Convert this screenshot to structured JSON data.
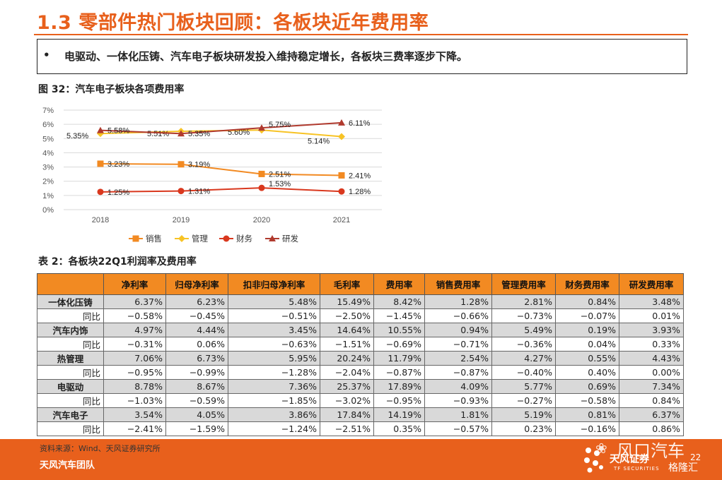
{
  "header": {
    "title": "1.3 零部件热门板块回顾：各板块近年费用率",
    "bullet_marker": "•",
    "bullet_text": "电驱动、一体化压铸、汽车电子板块研发投入维持稳定增长，各板块三费率逐步下降。"
  },
  "figure": {
    "caption": "图 32：汽车电子板块各项费用率"
  },
  "chart_data": {
    "type": "line",
    "title": "",
    "x": [
      "2018",
      "2019",
      "2020",
      "2021"
    ],
    "ylim": [
      0,
      7
    ],
    "y_ticks": [
      "0%",
      "1%",
      "2%",
      "3%",
      "4%",
      "5%",
      "6%",
      "7%"
    ],
    "grid": true,
    "legend_position": "bottom",
    "series": [
      {
        "name": "销售",
        "color": "#f28a22",
        "marker": "square",
        "values": [
          3.23,
          3.19,
          2.51,
          2.41
        ],
        "labels": [
          "3.23%",
          "3.19%",
          "2.51%",
          "2.41%"
        ]
      },
      {
        "name": "管理",
        "color": "#f7c325",
        "marker": "diamond",
        "values": [
          5.35,
          5.51,
          5.6,
          5.14
        ],
        "labels": [
          "5.35%",
          "5.51%",
          "5.60%",
          "5.14%"
        ]
      },
      {
        "name": "财务",
        "color": "#d9381e",
        "marker": "circle",
        "values": [
          1.25,
          1.31,
          1.53,
          1.28
        ],
        "labels": [
          "1.25%",
          "1.31%",
          "1.53%",
          "1.28%"
        ]
      },
      {
        "name": "研发",
        "color": "#b03a2e",
        "marker": "triangle",
        "values": [
          5.58,
          5.35,
          5.75,
          6.11
        ],
        "labels": [
          "5.58%",
          "5.35%",
          "5.75%",
          "6.11%"
        ]
      }
    ]
  },
  "table": {
    "caption": "表 2：各板块22Q1利润率及费用率",
    "columns": [
      "",
      "净利率",
      "归母净利率",
      "扣非归母净利率",
      "毛利率",
      "费用率",
      "销售费用率",
      "管理费用率",
      "财务费用率",
      "研发费用率"
    ],
    "rows": [
      {
        "kind": "main",
        "cells": [
          "一体化压铸",
          "6.37%",
          "6.23%",
          "5.48%",
          "15.49%",
          "8.42%",
          "1.28%",
          "2.81%",
          "0.84%",
          "3.48%"
        ]
      },
      {
        "kind": "yoy",
        "cells": [
          "同比",
          "−0.58%",
          "−0.45%",
          "−0.51%",
          "−2.50%",
          "−1.45%",
          "−0.66%",
          "−0.73%",
          "−0.07%",
          "0.01%"
        ]
      },
      {
        "kind": "main",
        "cells": [
          "汽车内饰",
          "4.97%",
          "4.44%",
          "3.45%",
          "14.64%",
          "10.55%",
          "0.94%",
          "5.49%",
          "0.19%",
          "3.93%"
        ]
      },
      {
        "kind": "yoy",
        "cells": [
          "同比",
          "−0.31%",
          "0.06%",
          "−0.63%",
          "−1.51%",
          "−0.69%",
          "−0.71%",
          "−0.36%",
          "0.04%",
          "0.33%"
        ]
      },
      {
        "kind": "main",
        "cells": [
          "热管理",
          "7.06%",
          "6.73%",
          "5.95%",
          "20.24%",
          "11.79%",
          "2.54%",
          "4.27%",
          "0.55%",
          "4.43%"
        ]
      },
      {
        "kind": "yoy",
        "cells": [
          "同比",
          "−0.95%",
          "−0.99%",
          "−1.28%",
          "−2.04%",
          "−0.87%",
          "−0.87%",
          "−0.40%",
          "0.40%",
          "0.00%"
        ]
      },
      {
        "kind": "main",
        "cells": [
          "电驱动",
          "8.78%",
          "8.67%",
          "7.36%",
          "25.37%",
          "17.89%",
          "4.09%",
          "5.77%",
          "0.69%",
          "7.34%"
        ]
      },
      {
        "kind": "yoy",
        "cells": [
          "同比",
          "−1.03%",
          "−0.59%",
          "−1.85%",
          "−3.02%",
          "−0.95%",
          "−0.93%",
          "−0.27%",
          "−0.58%",
          "0.84%"
        ]
      },
      {
        "kind": "main",
        "cells": [
          "汽车电子",
          "3.54%",
          "4.05%",
          "3.86%",
          "17.84%",
          "14.19%",
          "1.81%",
          "5.19%",
          "0.81%",
          "6.37%"
        ]
      },
      {
        "kind": "yoy",
        "cells": [
          "同比",
          "−2.41%",
          "−1.59%",
          "−1.24%",
          "−2.51%",
          "0.35%",
          "−0.57%",
          "0.23%",
          "−0.16%",
          "0.86%"
        ]
      }
    ]
  },
  "footer": {
    "source": "资料来源：Wind、天风证券研究所",
    "team": "天风汽车团队",
    "brand": "天风证券",
    "brand_sub": "TF SECURITIES",
    "page": "22",
    "watermark_primary": "风口汽车",
    "watermark_secondary": "格隆汇"
  },
  "colors": {
    "accent": "#e8601c",
    "table_header": "#f28a22",
    "row_shade": "#d9d9d9"
  },
  "icons": {
    "brand_logo": "tf-securities-logo-icon",
    "watermark_icon": "wechat-icon"
  }
}
